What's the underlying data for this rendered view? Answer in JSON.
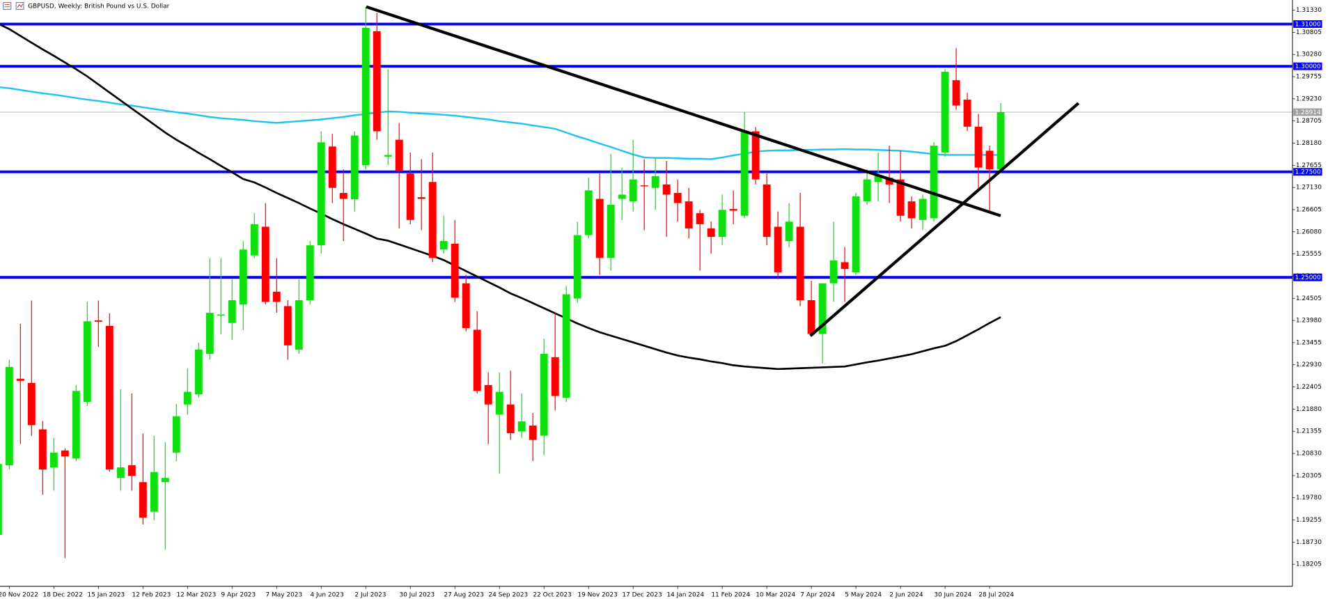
{
  "header": {
    "title": "GBPUSD, Weekly:  British Pound vs U.S. Dollar"
  },
  "chart_data": {
    "type": "candlestick",
    "categories": [
      null,
      "20 Nov 2022",
      null,
      null,
      null,
      "18 Dec 2022",
      null,
      null,
      null,
      "15 Jan 2023",
      null,
      null,
      null,
      "12 Feb 2023",
      null,
      null,
      null,
      "12 Mar 2023",
      null,
      null,
      null,
      "9 Apr 2023",
      null,
      null,
      null,
      "7 May 2023",
      null,
      null,
      null,
      "4 Jun 2023",
      null,
      null,
      null,
      "2 Jul 2023",
      null,
      null,
      null,
      "30 Jul 2023",
      null,
      null,
      null,
      "27 Aug 2023",
      null,
      null,
      null,
      "24 Sep 2023",
      null,
      null,
      null,
      "22 Oct 2023",
      null,
      null,
      null,
      "19 Nov 2023",
      null,
      null,
      null,
      "17 Dec 2023",
      null,
      null,
      null,
      "14 Jan 2024",
      null,
      null,
      null,
      "11 Feb 2024",
      null,
      null,
      null,
      "10 Mar 2024",
      null,
      null,
      null,
      "7 Apr 2024",
      null,
      null,
      null,
      "5 May 2024",
      null,
      null,
      null,
      "2 Jun 2024",
      null,
      null,
      null,
      "30 Jun 2024",
      null,
      null,
      null,
      "28 Jul 2024",
      null
    ],
    "candles": {
      "open": [
        1.189,
        1.2055,
        1.226,
        1.225,
        1.214,
        1.205,
        1.209,
        1.2071,
        1.2205,
        1.2398,
        1.2385,
        1.2025,
        1.2055,
        1.2015,
        1.1945,
        1.2015,
        1.2085,
        1.2199,
        1.2223,
        1.2319,
        1.241,
        1.2392,
        1.2436,
        1.2552,
        1.262,
        1.2466,
        1.2432,
        1.2329,
        1.2446,
        1.2576,
        1.281,
        1.27,
        1.2685,
        1.2766,
        1.3083,
        1.2786,
        1.2826,
        1.2746,
        1.269,
        1.2726,
        1.2566,
        1.258,
        1.2486,
        1.2376,
        1.2245,
        1.2175,
        1.2199,
        1.2135,
        1.2149,
        1.2125,
        1.2311,
        1.2215,
        1.245,
        1.26,
        1.2686,
        1.2546,
        1.2686,
        1.268,
        1.2718,
        1.2712,
        1.272,
        1.27,
        1.268,
        1.2652,
        1.2616,
        1.2596,
        1.2662,
        1.2646,
        1.2846,
        1.272,
        1.262,
        1.2586,
        1.262,
        1.2446,
        1.2366,
        1.2486,
        1.2536,
        1.2512,
        1.268,
        1.2726,
        1.2736,
        1.2732,
        1.268,
        1.2636,
        1.264,
        1.2796,
        1.2967,
        1.2921,
        1.2857,
        1.28,
        1.2756
      ],
      "high": [
        1.21,
        1.2305,
        1.239,
        1.2445,
        1.216,
        1.212,
        1.2095,
        1.2245,
        1.2442,
        1.2445,
        1.2415,
        1.2235,
        1.2225,
        1.213,
        1.2125,
        1.211,
        1.22,
        1.2285,
        1.2345,
        1.2546,
        1.2546,
        1.2495,
        1.2586,
        1.2652,
        1.2676,
        1.2546,
        1.2446,
        1.2495,
        1.2586,
        1.2846,
        1.284,
        1.2756,
        1.2846,
        1.3141,
        1.3127,
        1.2993,
        1.2866,
        1.2796,
        1.278,
        1.2796,
        1.2646,
        1.2636,
        1.2506,
        1.242,
        1.2275,
        1.2275,
        1.2279,
        1.2225,
        1.2179,
        1.2355,
        1.2415,
        1.248,
        1.2632,
        1.2736,
        1.2746,
        1.2792,
        1.276,
        1.2826,
        1.278,
        1.2784,
        1.2776,
        1.2732,
        1.2712,
        1.266,
        1.2632,
        1.2696,
        1.2706,
        1.2892,
        1.2856,
        1.2746,
        1.2656,
        1.2676,
        1.27,
        1.2492,
        1.2486,
        1.2632,
        1.2572,
        1.27,
        1.2756,
        1.2796,
        1.2812,
        1.28,
        1.2692,
        1.2696,
        1.282,
        1.2993,
        1.3043,
        1.2937,
        1.2887,
        1.2812,
        1.2913
      ],
      "low": [
        1.188,
        1.2045,
        1.2105,
        1.2125,
        1.1985,
        1.1995,
        1.1835,
        1.2065,
        1.2195,
        1.2335,
        1.204,
        1.1995,
        1.1995,
        1.1915,
        1.1925,
        1.1855,
        1.2065,
        1.2175,
        1.2215,
        1.2305,
        1.2365,
        1.2352,
        1.2375,
        1.2546,
        1.2436,
        1.2416,
        1.2305,
        1.2319,
        1.2436,
        1.2556,
        1.2676,
        1.2586,
        1.2656,
        1.2756,
        1.2826,
        1.2766,
        1.2616,
        1.2626,
        1.2612,
        1.2536,
        1.2556,
        1.2442,
        1.2372,
        1.2225,
        1.2105,
        1.2035,
        1.2115,
        1.2119,
        1.2065,
        1.2079,
        1.2185,
        1.2205,
        1.244,
        1.2592,
        1.2506,
        1.2516,
        1.2636,
        1.2656,
        1.2612,
        1.266,
        1.2596,
        1.2632,
        1.2592,
        1.2516,
        1.2556,
        1.2576,
        1.2626,
        1.264,
        1.272,
        1.2576,
        1.2496,
        1.2572,
        1.2432,
        1.236,
        1.2296,
        1.2442,
        1.2442,
        1.2506,
        1.2672,
        1.268,
        1.2676,
        1.2632,
        1.2616,
        1.2612,
        1.2632,
        1.2786,
        1.2897,
        1.2847,
        1.2706,
        1.2656,
        1.2746
      ],
      "close": [
        1.2058,
        1.2288,
        1.2255,
        1.215,
        1.2045,
        1.2085,
        1.2076,
        1.2231,
        1.2396,
        1.2395,
        1.2045,
        1.205,
        1.203,
        1.1931,
        1.2039,
        1.2025,
        1.2171,
        1.2229,
        1.2329,
        1.2416,
        1.2412,
        1.2446,
        1.2566,
        1.2626,
        1.2442,
        1.2442,
        1.2339,
        1.2446,
        1.2576,
        1.282,
        1.2712,
        1.2686,
        1.2836,
        1.3091,
        1.2846,
        1.279,
        1.2752,
        1.2636,
        1.2686,
        1.2546,
        1.2586,
        1.2452,
        1.238,
        1.2231,
        1.2199,
        1.2229,
        1.2131,
        1.2159,
        1.2115,
        1.2319,
        1.2219,
        1.246,
        1.26,
        1.2706,
        1.2546,
        1.2672,
        1.2696,
        1.2732,
        1.2716,
        1.274,
        1.2696,
        1.2676,
        1.2616,
        1.2626,
        1.2596,
        1.266,
        1.2658,
        1.2846,
        1.2732,
        1.2596,
        1.2512,
        1.2632,
        1.2446,
        1.2366,
        1.2486,
        1.254,
        1.252,
        1.2692,
        1.2732,
        1.274,
        1.272,
        1.2646,
        1.264,
        1.2686,
        1.2812,
        1.2987,
        1.2907,
        1.2857,
        1.276,
        1.2756,
        1.28914
      ]
    },
    "up_color": "#10e010",
    "down_color": "#ff0000",
    "overlays": [
      {
        "color": "#1ec3f0",
        "values": [
          1.2951,
          1.2948,
          1.2944,
          1.294,
          1.2936,
          1.2933,
          1.2929,
          1.2925,
          1.2921,
          1.2918,
          1.2914,
          1.291,
          1.2907,
          1.2903,
          1.2899,
          1.2895,
          1.2891,
          1.2888,
          1.2884,
          1.288,
          1.2877,
          1.2875,
          1.2873,
          1.287,
          1.2868,
          1.2866,
          1.2868,
          1.287,
          1.2872,
          1.2874,
          1.2877,
          1.288,
          1.2884,
          1.2887,
          1.289,
          1.2893,
          1.2892,
          1.289,
          1.2888,
          1.2887,
          1.2885,
          1.2883,
          1.288,
          1.2877,
          1.2874,
          1.287,
          1.2867,
          1.2864,
          1.286,
          1.2856,
          1.2852,
          1.2843,
          1.2834,
          1.2826,
          1.2817,
          1.2809,
          1.28,
          1.2791,
          1.2784,
          1.2783,
          1.2783,
          1.2782,
          1.2781,
          1.2781,
          1.278,
          1.2784,
          1.2789,
          1.2793,
          1.2798,
          1.28,
          1.2801,
          1.2801,
          1.2802,
          1.2802,
          1.2803,
          1.2803,
          1.2804,
          1.2803,
          1.2803,
          1.2802,
          1.2801,
          1.28,
          1.2798,
          1.2795,
          1.2792,
          1.279,
          1.279,
          1.279,
          1.279,
          1.279,
          1.279
        ]
      },
      {
        "color": "#000000",
        "values": [
          1.3101,
          1.3088,
          1.3072,
          1.3056,
          1.304,
          1.3025,
          1.3009,
          1.2993,
          1.2976,
          1.2957,
          1.2938,
          1.2919,
          1.29,
          1.2881,
          1.2862,
          1.2843,
          1.2826,
          1.2811,
          1.2795,
          1.278,
          1.2764,
          1.2749,
          1.2733,
          1.2725,
          1.2713,
          1.27,
          1.2688,
          1.2676,
          1.2663,
          1.2651,
          1.2638,
          1.2626,
          1.2615,
          1.2604,
          1.2592,
          1.2587,
          1.2578,
          1.2569,
          1.256,
          1.2551,
          1.2541,
          1.2528,
          1.2515,
          1.2502,
          1.2489,
          1.2476,
          1.2462,
          1.2451,
          1.2439,
          1.2427,
          1.2415,
          1.2403,
          1.2391,
          1.238,
          1.237,
          1.2362,
          1.2354,
          1.2346,
          1.2338,
          1.233,
          1.2322,
          1.2315,
          1.231,
          1.2306,
          1.2301,
          1.2297,
          1.2292,
          1.2289,
          1.2287,
          1.2285,
          1.2283,
          1.2284,
          1.2285,
          1.2286,
          1.2287,
          1.2288,
          1.2289,
          1.2294,
          1.2299,
          1.2303,
          1.2308,
          1.2313,
          1.2318,
          1.2325,
          1.2332,
          1.2338,
          1.2349,
          1.2363,
          1.2377,
          1.2392,
          1.2406
        ]
      }
    ],
    "levels": [
      {
        "value": 1.31,
        "label": "1.31000"
      },
      {
        "value": 1.3,
        "label": "1.30000"
      },
      {
        "value": 1.275,
        "label": "1.27500"
      },
      {
        "value": 1.25,
        "label": "1.25000"
      }
    ],
    "level_color": "#0000ff",
    "current_price": {
      "value": 1.28914,
      "label": "1.28914"
    },
    "ylim": [
      1.17683,
      1.3149
    ],
    "yticks": [
      {
        "value": 1.3133,
        "label": "1.31330"
      },
      {
        "value": 1.30805,
        "label": "1.30805"
      },
      {
        "value": 1.3028,
        "label": "1.30280"
      },
      {
        "value": 1.29755,
        "label": "1.29755"
      },
      {
        "value": 1.2923,
        "label": "1.29230"
      },
      {
        "value": 1.28705,
        "label": "1.28705"
      },
      {
        "value": 1.2818,
        "label": "1.28180"
      },
      {
        "value": 1.27655,
        "label": "1.27655"
      },
      {
        "value": 1.2713,
        "label": "1.27130"
      },
      {
        "value": 1.26605,
        "label": "1.26605"
      },
      {
        "value": 1.2608,
        "label": "1.26080"
      },
      {
        "value": 1.25555,
        "label": "1.25555"
      },
      {
        "value": 1.2503,
        "label": "1.25030"
      },
      {
        "value": 1.24505,
        "label": "1.24505"
      },
      {
        "value": 1.2398,
        "label": "1.23980"
      },
      {
        "value": 1.23455,
        "label": "1.23455"
      },
      {
        "value": 1.2293,
        "label": "1.22930"
      },
      {
        "value": 1.22405,
        "label": "1.22405"
      },
      {
        "value": 1.2188,
        "label": "1.21880"
      },
      {
        "value": 1.21355,
        "label": "1.21355"
      },
      {
        "value": 1.2083,
        "label": "1.20830"
      },
      {
        "value": 1.20305,
        "label": "1.20305"
      },
      {
        "value": 1.1978,
        "label": "1.19780"
      },
      {
        "value": 1.19255,
        "label": "1.19255"
      },
      {
        "value": 1.1873,
        "label": "1.18730"
      },
      {
        "value": 1.18205,
        "label": "1.18205"
      }
    ]
  }
}
